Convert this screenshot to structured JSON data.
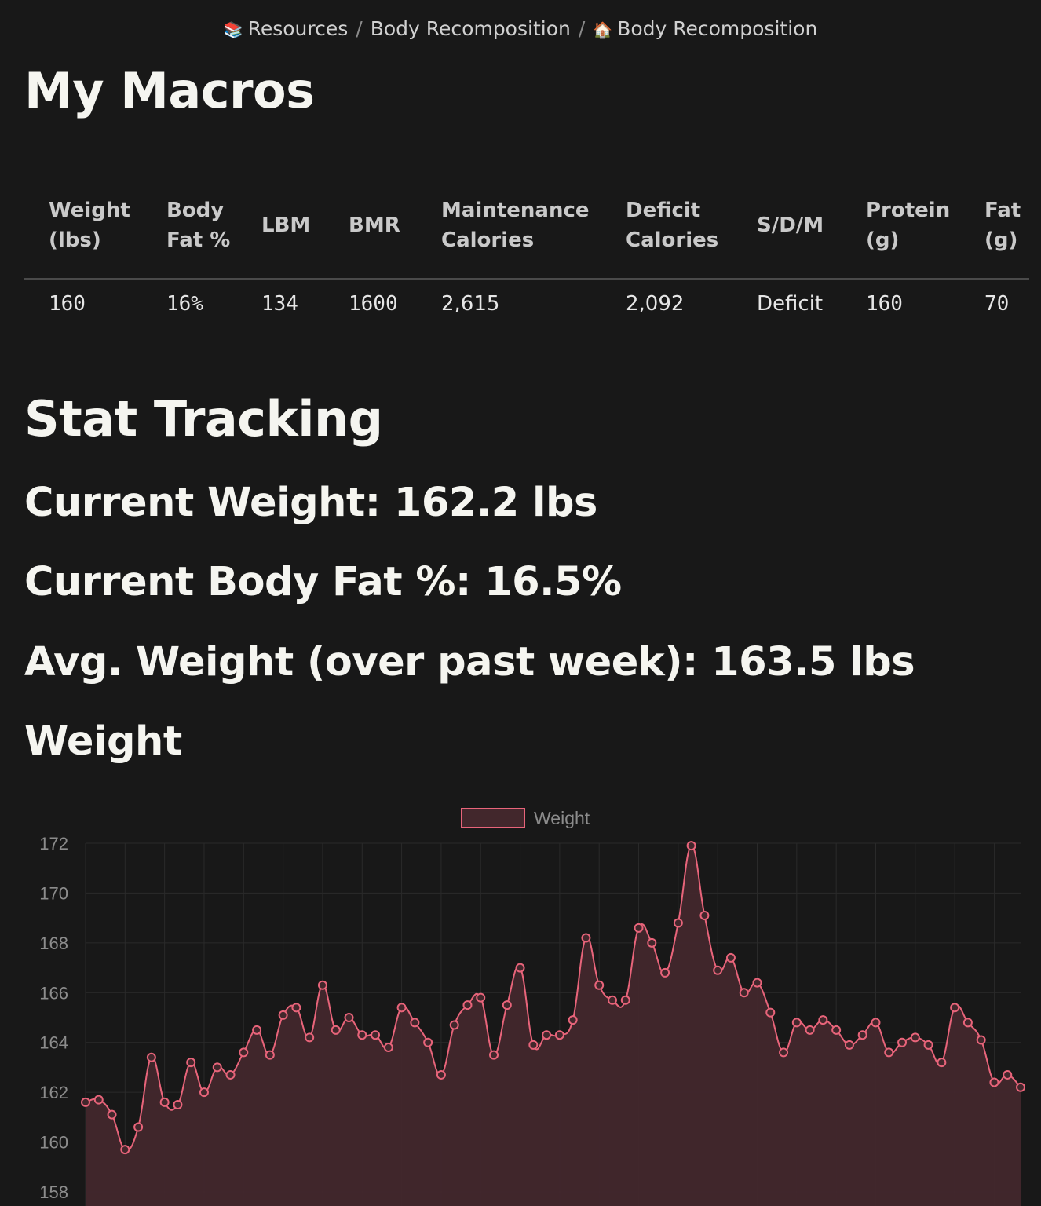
{
  "breadcrumb": {
    "items": [
      {
        "icon": "books-icon",
        "emoji": "📚",
        "label": "Resources"
      },
      {
        "icon": "",
        "emoji": "",
        "label": "Body Recomposition"
      },
      {
        "icon": "house-icon",
        "emoji": "🏠",
        "label": "Body Recomposition"
      }
    ],
    "separator": "/"
  },
  "macros": {
    "title": "My Macros",
    "headers": [
      "Weight (lbs)",
      "Body Fat %",
      "LBM",
      "BMR",
      "Maintenance Calories",
      "Deficit Calories",
      "S/D/M",
      "Protein (g)",
      "Fat (g)"
    ],
    "row": [
      "160",
      "16%",
      "134",
      "1600",
      "2,615",
      "2,092",
      "Deficit",
      "160",
      "70"
    ]
  },
  "stats": {
    "title": "Stat Tracking",
    "current_weight": "Current Weight: 162.2 lbs",
    "current_bf": "Current Body Fat %: 16.5%",
    "avg_weight": "Avg. Weight (over past week): 163.5 lbs",
    "weight_heading": "Weight"
  },
  "colors": {
    "line": "#e8647a",
    "fill": "#42272c",
    "grid": "#2a2a2a",
    "tick": "#8c8c8c"
  },
  "chart_data": {
    "type": "area",
    "series": [
      {
        "name": "Weight",
        "values": [
          161.6,
          161.7,
          161.1,
          159.7,
          160.6,
          163.4,
          161.6,
          161.5,
          163.2,
          162.0,
          163.0,
          162.7,
          163.6,
          164.5,
          163.5,
          165.1,
          165.4,
          164.2,
          166.3,
          164.5,
          165.0,
          164.3,
          164.3,
          163.8,
          165.4,
          164.8,
          164.0,
          162.7,
          164.7,
          165.5,
          165.8,
          163.5,
          165.5,
          167.0,
          163.9,
          164.3,
          164.3,
          164.9,
          168.2,
          166.3,
          165.7,
          165.7,
          168.6,
          168.0,
          166.8,
          168.8,
          171.9,
          169.1,
          166.9,
          167.4,
          166.0,
          166.4,
          165.2,
          163.6,
          164.8,
          164.5,
          164.9,
          164.5,
          163.9,
          164.3,
          164.8,
          163.6,
          164.0,
          164.2,
          163.9,
          163.2,
          165.4,
          164.8,
          164.1,
          162.4,
          162.7,
          162.2
        ]
      }
    ],
    "ylim": [
      158,
      172
    ],
    "yticks": [
      "158",
      "160",
      "162",
      "164",
      "166",
      "168",
      "170",
      "172"
    ],
    "legend": "top-center",
    "grid": true
  }
}
